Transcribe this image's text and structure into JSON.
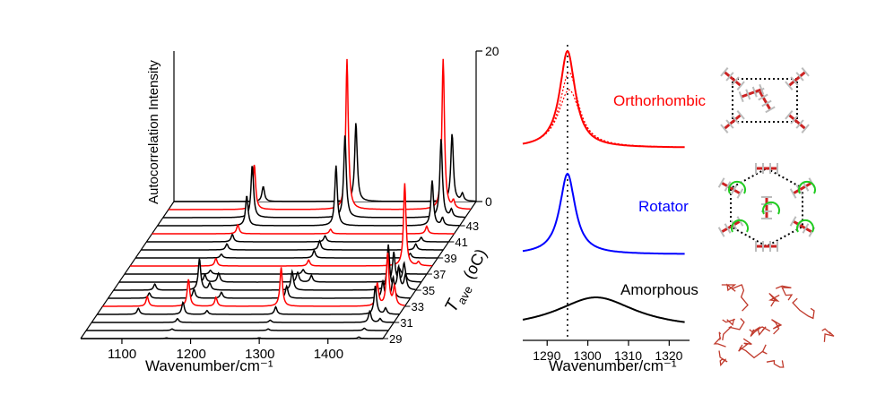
{
  "figure_panels": [
    "left_waterfall",
    "right_peaks",
    "crystal_structures"
  ],
  "colors": {
    "red": "#ff0000",
    "black": "#000000",
    "blue": "#0000ff",
    "green": "#22cc22"
  },
  "chart_data": [
    {
      "type": "line",
      "subtype": "waterfall",
      "xlabel": "Wavenumber/cm⁻¹",
      "zlabel": "Autocorrelation Intensity",
      "depth_label": "T",
      "depth_label_sub": "ave",
      "depth_label_unit": "(oC)",
      "xlim": [
        1040,
        1480
      ],
      "x_ticks": [
        "1100",
        "1200",
        "1300",
        "1400"
      ],
      "z_ticks": [
        "0",
        "20"
      ],
      "zlim": [
        0,
        20
      ],
      "depth_ticks": [
        "29",
        "31",
        "33",
        "35",
        "37",
        "39",
        "41",
        "43"
      ],
      "traces": [
        {
          "T": 29,
          "color": "black",
          "peaks": [
            [
              1165,
              0.1
            ],
            [
              1300,
              0.1
            ],
            [
              1445,
              0.2
            ]
          ]
        },
        {
          "T": 30,
          "color": "black",
          "peaks": [
            [
              1165,
              0.2
            ],
            [
              1305,
              0.2
            ],
            [
              1445,
              0.3
            ]
          ]
        },
        {
          "T": 31,
          "color": "black",
          "peaks": [
            [
              1165,
              0.5
            ],
            [
              1300,
              0.3
            ],
            [
              1445,
              1.5
            ],
            [
              1460,
              0.5
            ]
          ]
        },
        {
          "T": 32,
          "color": "black",
          "peaks": [
            [
              1100,
              0.8
            ],
            [
              1165,
              1.6
            ],
            [
              1200,
              0.5
            ],
            [
              1300,
              1.0
            ],
            [
              1445,
              3.8
            ],
            [
              1460,
              0.8
            ]
          ]
        },
        {
          "T": 33,
          "color": "red",
          "peaks": [
            [
              1105,
              1.3
            ],
            [
              1165,
              3.6
            ],
            [
              1205,
              1.2
            ],
            [
              1300,
              5.2
            ],
            [
              1440,
              3.0
            ],
            [
              1455,
              7.0
            ],
            [
              1465,
              2.5
            ]
          ]
        },
        {
          "T": 34,
          "color": "black",
          "peaks": [
            [
              1100,
              0.7
            ],
            [
              1165,
              1.2
            ],
            [
              1205,
              0.8
            ],
            [
              1300,
              1.6
            ],
            [
              1440,
              2.2
            ],
            [
              1455,
              2.8
            ]
          ]
        },
        {
          "T": 35,
          "color": "black",
          "peaks": [
            [
              1100,
              0.8
            ],
            [
              1165,
              4.2
            ],
            [
              1180,
              0.9
            ],
            [
              1300,
              2.5
            ],
            [
              1440,
              6.0
            ],
            [
              1455,
              3.0
            ],
            [
              1465,
              2.0
            ]
          ]
        },
        {
          "T": 36,
          "color": "black",
          "peaks": [
            [
              1165,
              1.0
            ],
            [
              1185,
              1.2
            ],
            [
              1300,
              1.3
            ],
            [
              1320,
              0.9
            ],
            [
              1440,
              4.0
            ],
            [
              1455,
              2.5
            ]
          ]
        },
        {
          "T": 37,
          "color": "black",
          "peaks": [
            [
              1165,
              0.5
            ],
            [
              1300,
              0.6
            ],
            [
              1440,
              0.8
            ]
          ]
        },
        {
          "T": 38,
          "color": "red",
          "peaks": [
            [
              1165,
              1.0
            ],
            [
              1300,
              0.8
            ],
            [
              1440,
              11.0
            ],
            [
              1460,
              0.5
            ]
          ]
        },
        {
          "T": 39,
          "color": "black",
          "peaks": [
            [
              1165,
              0.5
            ],
            [
              1300,
              1.0
            ],
            [
              1440,
              0.6
            ]
          ]
        },
        {
          "T": 40,
          "color": "black",
          "peaks": [
            [
              1165,
              0.8
            ],
            [
              1300,
              1.2
            ],
            [
              1440,
              0.8
            ]
          ]
        },
        {
          "T": 41,
          "color": "black",
          "peaks": [
            [
              1165,
              1.0
            ],
            [
              1300,
              0.8
            ],
            [
              1440,
              0.6
            ]
          ]
        },
        {
          "T": 42,
          "color": "red",
          "peaks": [
            [
              1165,
              1.2
            ],
            [
              1300,
              0.6
            ],
            [
              1440,
              1.0
            ]
          ]
        },
        {
          "T": 43,
          "color": "black",
          "peaks": [
            [
              1170,
              4.0
            ],
            [
              1300,
              8.0
            ],
            [
              1440,
              6.0
            ],
            [
              1455,
              1.0
            ]
          ]
        },
        {
          "T": 44,
          "color": "black",
          "peaks": [
            [
              1170,
              7.0
            ],
            [
              1305,
              11.0
            ],
            [
              1445,
              10.5
            ],
            [
              1460,
              1.0
            ]
          ]
        },
        {
          "T": 45,
          "color": "red",
          "peaks": [
            [
              1165,
              6.0
            ],
            [
              1300,
              20.0
            ],
            [
              1440,
              20.0
            ],
            [
              1455,
              1.0
            ]
          ]
        },
        {
          "T": 46,
          "color": "black",
          "peaks": [
            [
              1170,
              2.0
            ],
            [
              1305,
              10.5
            ],
            [
              1445,
              9.0
            ],
            [
              1460,
              1.0
            ]
          ]
        }
      ]
    },
    {
      "type": "line",
      "xlabel": "Wavenumber/cm⁻¹",
      "xlim": [
        1284,
        1325
      ],
      "x_ticks": [
        "1290",
        "1300",
        "1310",
        "1320"
      ],
      "reference_line": 1295,
      "series": [
        {
          "name": "Orthorhombic",
          "color": "red",
          "center": 1295,
          "width": 2.3,
          "height": 1.0
        },
        {
          "name": "Rotator",
          "color": "blue",
          "center": 1295,
          "width": 2.3,
          "height": 1.0
        },
        {
          "name": "Amorphous",
          "color": "black",
          "center": 1302,
          "width": 12.0,
          "height": 0.35
        }
      ]
    }
  ],
  "labels": {
    "orthorhombic": "Orthorhombic",
    "rotator": "Rotator",
    "amorphous": "Amorphous"
  }
}
